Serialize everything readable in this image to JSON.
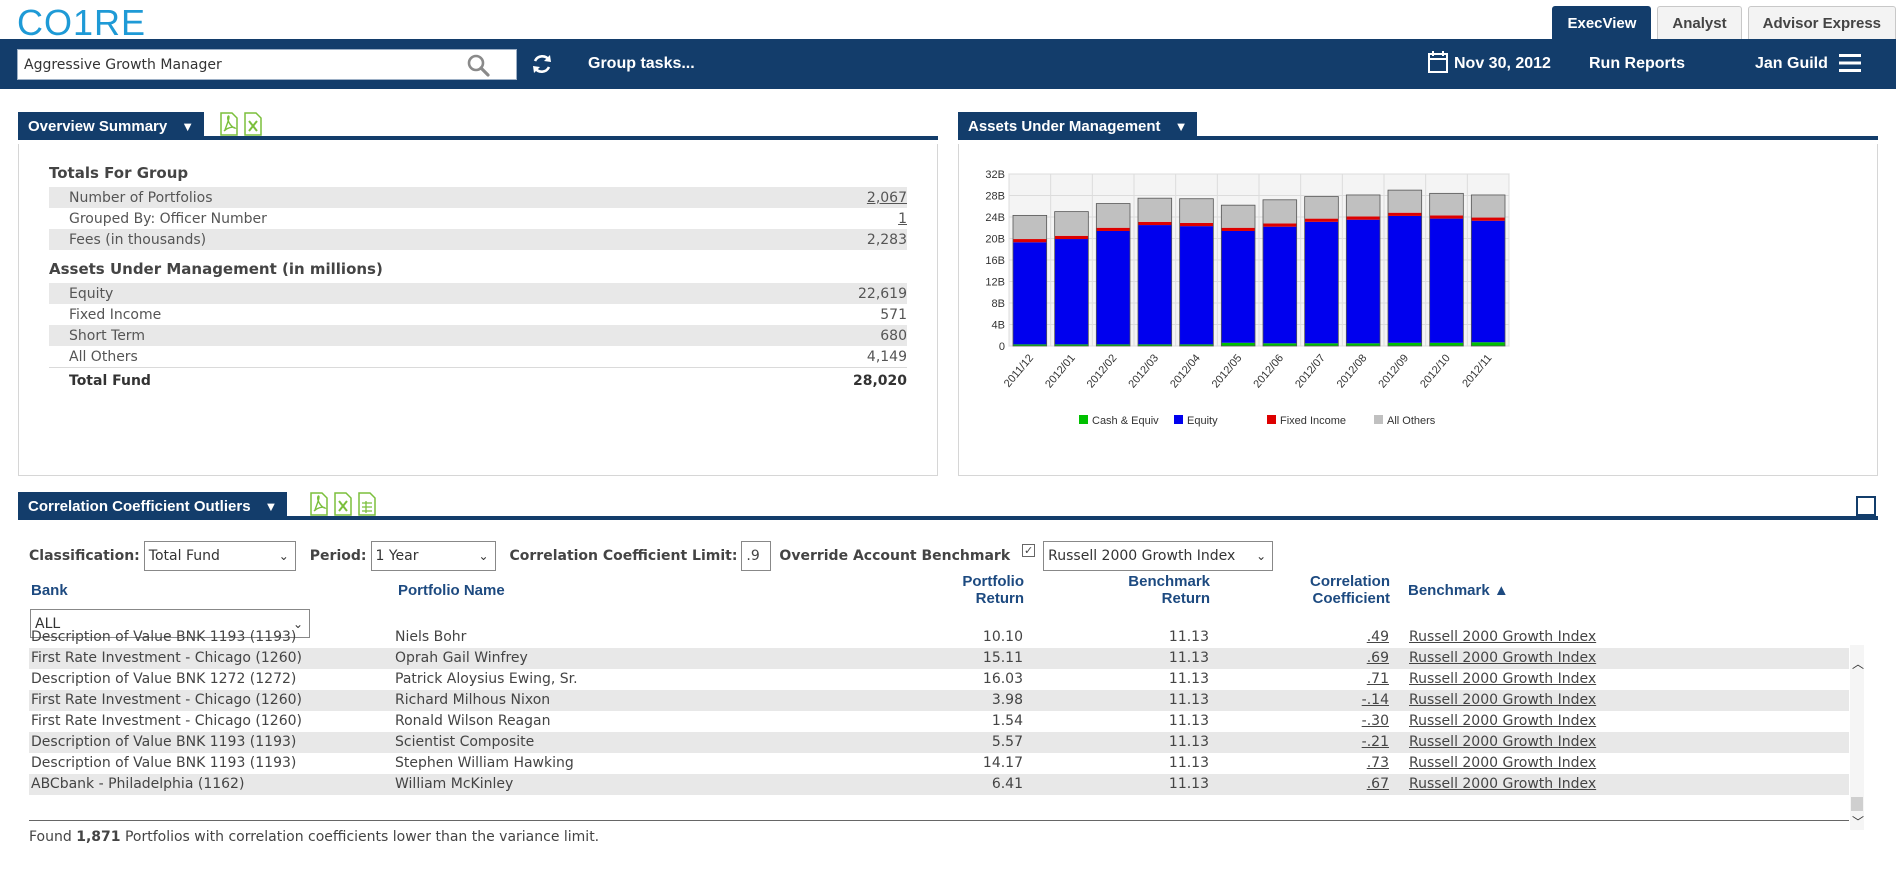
{
  "brand": {
    "logo_text": "CO1RE"
  },
  "tabs": [
    {
      "label": "ExecView",
      "active": true
    },
    {
      "label": "Analyst",
      "active": false
    },
    {
      "label": "Advisor Express",
      "active": false
    }
  ],
  "navbar": {
    "search_value": "Aggressive Growth Manager",
    "group_tasks": "Group tasks...",
    "date": "Nov 30, 2012",
    "run_reports": "Run Reports",
    "user": "Jan Guild"
  },
  "overview": {
    "title": "Overview Summary",
    "totals_heading": "Totals For Group",
    "totals": [
      {
        "label": "Number of Portfolios",
        "value": "2,067"
      },
      {
        "label": "Grouped By: Officer Number",
        "value": "1"
      },
      {
        "label": "Fees (in thousands)",
        "value": "2,283"
      }
    ],
    "aum_heading": "Assets Under Management (in millions)",
    "aum": [
      {
        "label": "Equity",
        "value": "22,619"
      },
      {
        "label": "Fixed Income",
        "value": "571"
      },
      {
        "label": "Short Term",
        "value": "680"
      },
      {
        "label": "All Others",
        "value": "4,149"
      }
    ],
    "total_label": "Total Fund",
    "total_value": "28,020"
  },
  "aum_panel": {
    "title": "Assets Under Management"
  },
  "chart_data": {
    "type": "bar",
    "stacked": true,
    "categories": [
      "2011/12",
      "2012/01",
      "2012/02",
      "2012/03",
      "2012/04",
      "2012/05",
      "2012/06",
      "2012/07",
      "2012/08",
      "2012/09",
      "2012/10",
      "2012/11"
    ],
    "series": [
      {
        "name": "Cash & Equiv",
        "color": "#00c000",
        "values": [
          0.3,
          0.3,
          0.3,
          0.3,
          0.3,
          0.6,
          0.5,
          0.5,
          0.5,
          0.6,
          0.6,
          0.7
        ]
      },
      {
        "name": "Equity",
        "color": "#0000ee",
        "values": [
          19.0,
          19.6,
          21.1,
          22.2,
          22.0,
          20.8,
          21.7,
          22.6,
          23.0,
          23.6,
          23.1,
          22.6
        ]
      },
      {
        "name": "Fixed Income",
        "color": "#dd0000",
        "values": [
          0.6,
          0.6,
          0.6,
          0.6,
          0.6,
          0.6,
          0.6,
          0.6,
          0.6,
          0.6,
          0.6,
          0.6
        ]
      },
      {
        "name": "All Others",
        "color": "#c0c0c0",
        "values": [
          4.4,
          4.5,
          4.5,
          4.4,
          4.5,
          4.2,
          4.4,
          4.1,
          4.0,
          4.2,
          4.1,
          4.2
        ]
      }
    ],
    "ytick_labels": [
      "0",
      "4B",
      "8B",
      "12B",
      "16B",
      "20B",
      "24B",
      "28B",
      "32B"
    ],
    "ylim": [
      0,
      32
    ],
    "grid": true,
    "legend_position": "bottom"
  },
  "correlation": {
    "title": "Correlation Coefficient Outliers",
    "filters": {
      "classification_label": "Classification:",
      "classification_value": "Total Fund",
      "period_label": "Period:",
      "period_value": "1 Year",
      "limit_label": "Correlation Coefficient Limit:",
      "limit_value": ".9",
      "override_label": "Override Account Benchmark",
      "override_checked": true,
      "benchmark_value": "Russell 2000 Growth Index"
    },
    "columns": {
      "bank": "Bank",
      "portfolio": "Portfolio Name",
      "portfolio_return_1": "Portfolio",
      "portfolio_return_2": "Return",
      "benchmark_return_1": "Benchmark",
      "benchmark_return_2": "Return",
      "correlation_1": "Correlation",
      "correlation_2": "Coefficient",
      "benchmark": "Benchmark ▲"
    },
    "bank_filter": "ALL",
    "rows": [
      {
        "bank": "Description of Value BNK 1193 (1193)",
        "portfolio": "Niels Bohr",
        "pret": "10.10",
        "bret": "11.13",
        "corr": ".49",
        "bench": "Russell 2000 Growth Index"
      },
      {
        "bank": "First Rate Investment - Chicago (1260)",
        "portfolio": "Oprah Gail Winfrey",
        "pret": "15.11",
        "bret": "11.13",
        "corr": ".69",
        "bench": "Russell 2000 Growth Index"
      },
      {
        "bank": "Description of Value BNK 1272 (1272)",
        "portfolio": "Patrick Aloysius Ewing, Sr.",
        "pret": "16.03",
        "bret": "11.13",
        "corr": ".71",
        "bench": "Russell 2000 Growth Index"
      },
      {
        "bank": "First Rate Investment - Chicago (1260)",
        "portfolio": "Richard Milhous Nixon",
        "pret": "3.98",
        "bret": "11.13",
        "corr": "-.14",
        "bench": "Russell 2000 Growth Index"
      },
      {
        "bank": "First Rate Investment - Chicago (1260)",
        "portfolio": "Ronald Wilson Reagan",
        "pret": "1.54",
        "bret": "11.13",
        "corr": "-.30",
        "bench": "Russell 2000 Growth Index"
      },
      {
        "bank": "Description of Value BNK 1193 (1193)",
        "portfolio": "Scientist Composite",
        "pret": "5.57",
        "bret": "11.13",
        "corr": "-.21",
        "bench": "Russell 2000 Growth Index"
      },
      {
        "bank": "Description of Value BNK 1193 (1193)",
        "portfolio": "Stephen William Hawking",
        "pret": "14.17",
        "bret": "11.13",
        "corr": ".73",
        "bench": "Russell 2000 Growth Index"
      },
      {
        "bank": "ABCbank - Philadelphia (1162)",
        "portfolio": "William McKinley",
        "pret": "6.41",
        "bret": "11.13",
        "corr": ".67",
        "bench": "Russell 2000 Growth Index"
      }
    ],
    "footer": {
      "prefix": "Found",
      "count": "1,871",
      "suffix": "Portfolios with correlation coefficients lower than the variance limit."
    }
  }
}
